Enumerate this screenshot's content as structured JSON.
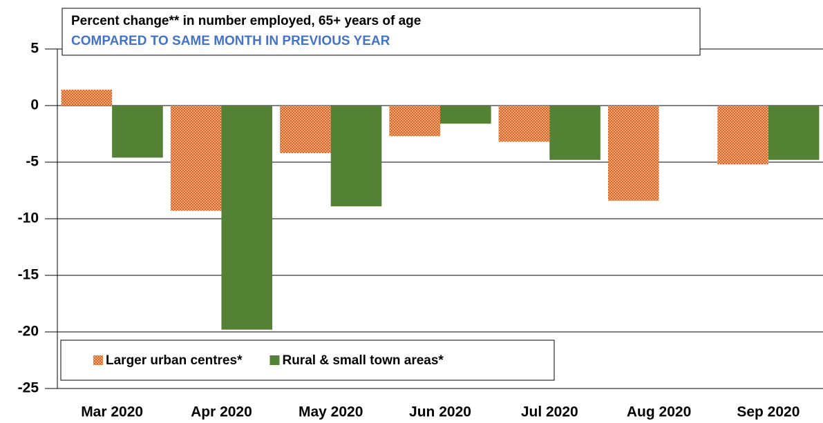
{
  "chart_data": {
    "type": "bar",
    "title": "Percent change** in number employed, 65+ years of age",
    "subtitle": "COMPARED TO SAME MONTH IN PREVIOUS YEAR",
    "categories": [
      "Mar 2020",
      "Apr 2020",
      "May 2020",
      "Jun 2020",
      "Jul 2020",
      "Aug 2020",
      "Sep 2020"
    ],
    "series": [
      {
        "name": "Larger urban centres*",
        "color": "#d9641e",
        "pattern": "dots",
        "values": [
          1.4,
          -9.3,
          -4.2,
          -2.7,
          -3.2,
          -8.4,
          -5.2
        ]
      },
      {
        "name": "Rural & small town areas*",
        "color": "#548235",
        "values": [
          -4.6,
          -19.8,
          -8.9,
          -1.6,
          -4.8,
          null,
          -4.8
        ]
      }
    ],
    "ylim": [
      -25,
      5
    ],
    "yticks": [
      -25,
      -20,
      -15,
      -10,
      -5,
      0,
      5
    ],
    "grid": true
  }
}
